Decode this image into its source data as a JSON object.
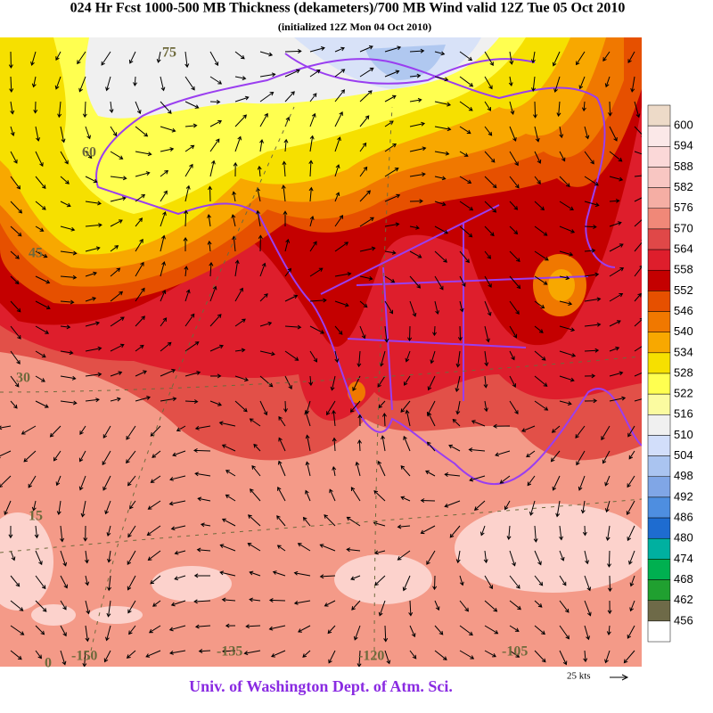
{
  "header": {
    "title": "024 Hr Fcst 1000-500 MB Thickness (dekameters)/700 MB Wind valid 12Z Tue 05 Oct 2010",
    "subtitle": "(initialized 12Z Mon 04 Oct 2010)"
  },
  "map": {
    "lat_labels": [
      "75",
      "60",
      "45",
      "30",
      "15",
      "0"
    ],
    "lon_labels": [
      "-150",
      "-135",
      "-120",
      "-105"
    ]
  },
  "legend": {
    "levels": [
      600,
      594,
      588,
      582,
      576,
      570,
      564,
      558,
      552,
      546,
      540,
      534,
      528,
      522,
      516,
      510,
      504,
      498,
      492,
      486,
      480,
      474,
      468,
      462,
      456
    ]
  },
  "footer": {
    "credit": "Univ. of Washington Dept. of Atm. Sci.",
    "scale": "25 kts"
  }
}
